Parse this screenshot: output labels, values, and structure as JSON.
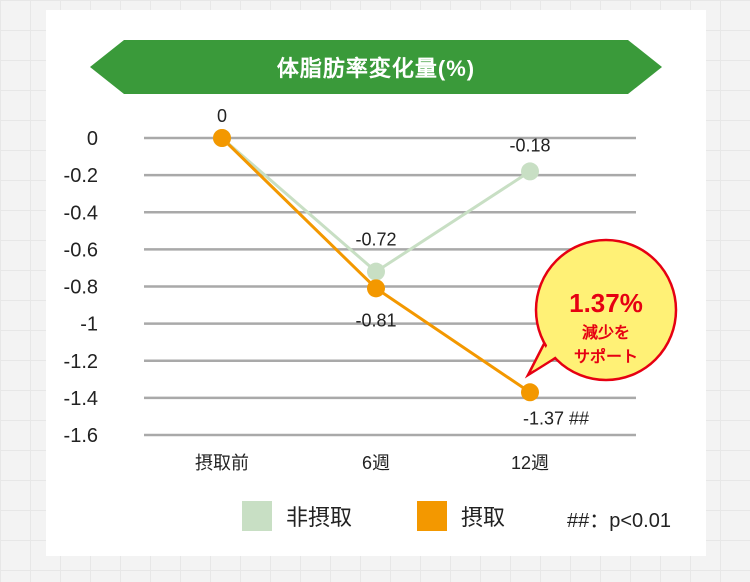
{
  "chart_data": {
    "type": "line",
    "title": "体脂肪率変化量(%)",
    "categories": [
      "摂取前",
      "6週",
      "12週"
    ],
    "series": [
      {
        "name": "非摂取",
        "color": "#c8dfc4",
        "values": [
          0,
          -0.72,
          -0.18
        ],
        "labels": [
          "0",
          "-0.72",
          "-0.18"
        ]
      },
      {
        "name": "摂取",
        "color": "#f39800",
        "values": [
          0,
          -0.81,
          -1.37
        ],
        "labels": [
          "0",
          "-0.81",
          "-1.37 ##"
        ]
      }
    ],
    "yticks": [
      "0",
      "-0.2",
      "-0.4",
      "-0.6",
      "-0.8",
      "-1",
      "-1.2",
      "-1.4",
      "-1.6"
    ],
    "ylim": [
      -1.6,
      0
    ],
    "grid": true,
    "legend_position": "bottom",
    "annotation": {
      "big": "1.37%",
      "line1": "減少を",
      "line2": "サポート"
    },
    "footnote": "##：p<0.01"
  },
  "colors": {
    "banner": "#3a9a3a",
    "grid": "#a9a9a9",
    "bubble_fill": "#fff176",
    "bubble_stroke": "#e60012"
  }
}
